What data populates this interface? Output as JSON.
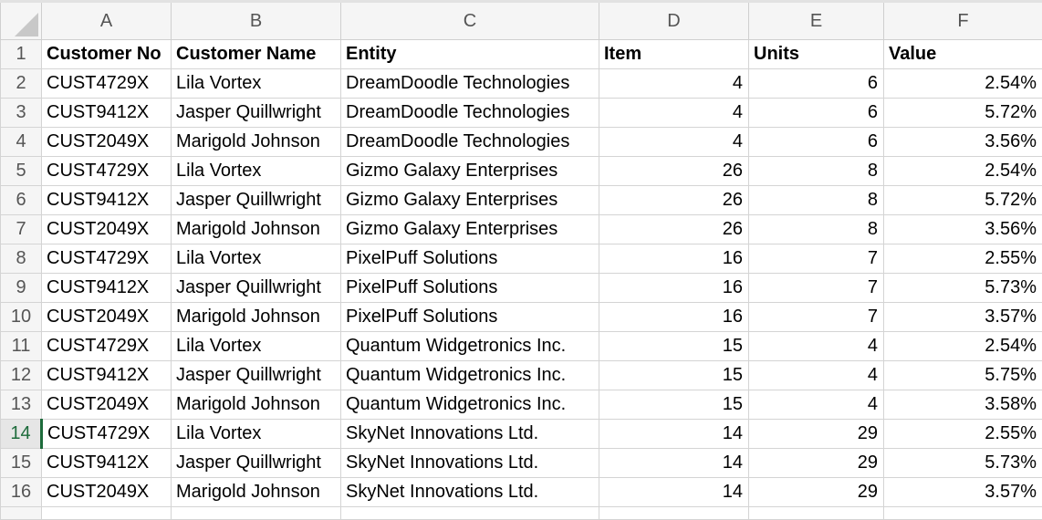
{
  "columns": [
    "A",
    "B",
    "C",
    "D",
    "E",
    "F"
  ],
  "header_row_number": "1",
  "headers": [
    "Customer No",
    "Customer Name",
    "Entity",
    "Item",
    "Units",
    "Value"
  ],
  "active_row": "14",
  "rows": [
    {
      "n": "2",
      "cells": [
        "CUST4729X",
        "Lila Vortex",
        "DreamDoodle Technologies",
        "4",
        "6",
        "2.54%"
      ]
    },
    {
      "n": "3",
      "cells": [
        "CUST9412X",
        "Jasper Quillwright",
        "DreamDoodle Technologies",
        "4",
        "6",
        "5.72%"
      ]
    },
    {
      "n": "4",
      "cells": [
        "CUST2049X",
        "Marigold Johnson",
        "DreamDoodle Technologies",
        "4",
        "6",
        "3.56%"
      ]
    },
    {
      "n": "5",
      "cells": [
        "CUST4729X",
        "Lila Vortex",
        "Gizmo Galaxy Enterprises",
        "26",
        "8",
        "2.54%"
      ]
    },
    {
      "n": "6",
      "cells": [
        "CUST9412X",
        "Jasper Quillwright",
        "Gizmo Galaxy Enterprises",
        "26",
        "8",
        "5.72%"
      ]
    },
    {
      "n": "7",
      "cells": [
        "CUST2049X",
        "Marigold Johnson",
        "Gizmo Galaxy Enterprises",
        "26",
        "8",
        "3.56%"
      ]
    },
    {
      "n": "8",
      "cells": [
        "CUST4729X",
        "Lila Vortex",
        "PixelPuff Solutions",
        "16",
        "7",
        "2.55%"
      ]
    },
    {
      "n": "9",
      "cells": [
        "CUST9412X",
        "Jasper Quillwright",
        "PixelPuff Solutions",
        "16",
        "7",
        "5.73%"
      ]
    },
    {
      "n": "10",
      "cells": [
        "CUST2049X",
        "Marigold Johnson",
        "PixelPuff Solutions",
        "16",
        "7",
        "3.57%"
      ]
    },
    {
      "n": "11",
      "cells": [
        "CUST4729X",
        "Lila Vortex",
        "Quantum Widgetronics Inc.",
        "15",
        "4",
        "2.54%"
      ]
    },
    {
      "n": "12",
      "cells": [
        "CUST9412X",
        "Jasper Quillwright",
        "Quantum Widgetronics Inc.",
        "15",
        "4",
        "5.75%"
      ]
    },
    {
      "n": "13",
      "cells": [
        "CUST2049X",
        "Marigold Johnson",
        "Quantum Widgetronics Inc.",
        "15",
        "4",
        "3.58%"
      ]
    },
    {
      "n": "14",
      "cells": [
        "CUST4729X",
        "Lila Vortex",
        "SkyNet Innovations Ltd.",
        "14",
        "29",
        "2.55%"
      ]
    },
    {
      "n": "15",
      "cells": [
        "CUST9412X",
        "Jasper Quillwright",
        "SkyNet Innovations Ltd.",
        "14",
        "29",
        "5.73%"
      ]
    },
    {
      "n": "16",
      "cells": [
        "CUST2049X",
        "Marigold Johnson",
        "SkyNet Innovations Ltd.",
        "14",
        "29",
        "3.57%"
      ]
    }
  ]
}
